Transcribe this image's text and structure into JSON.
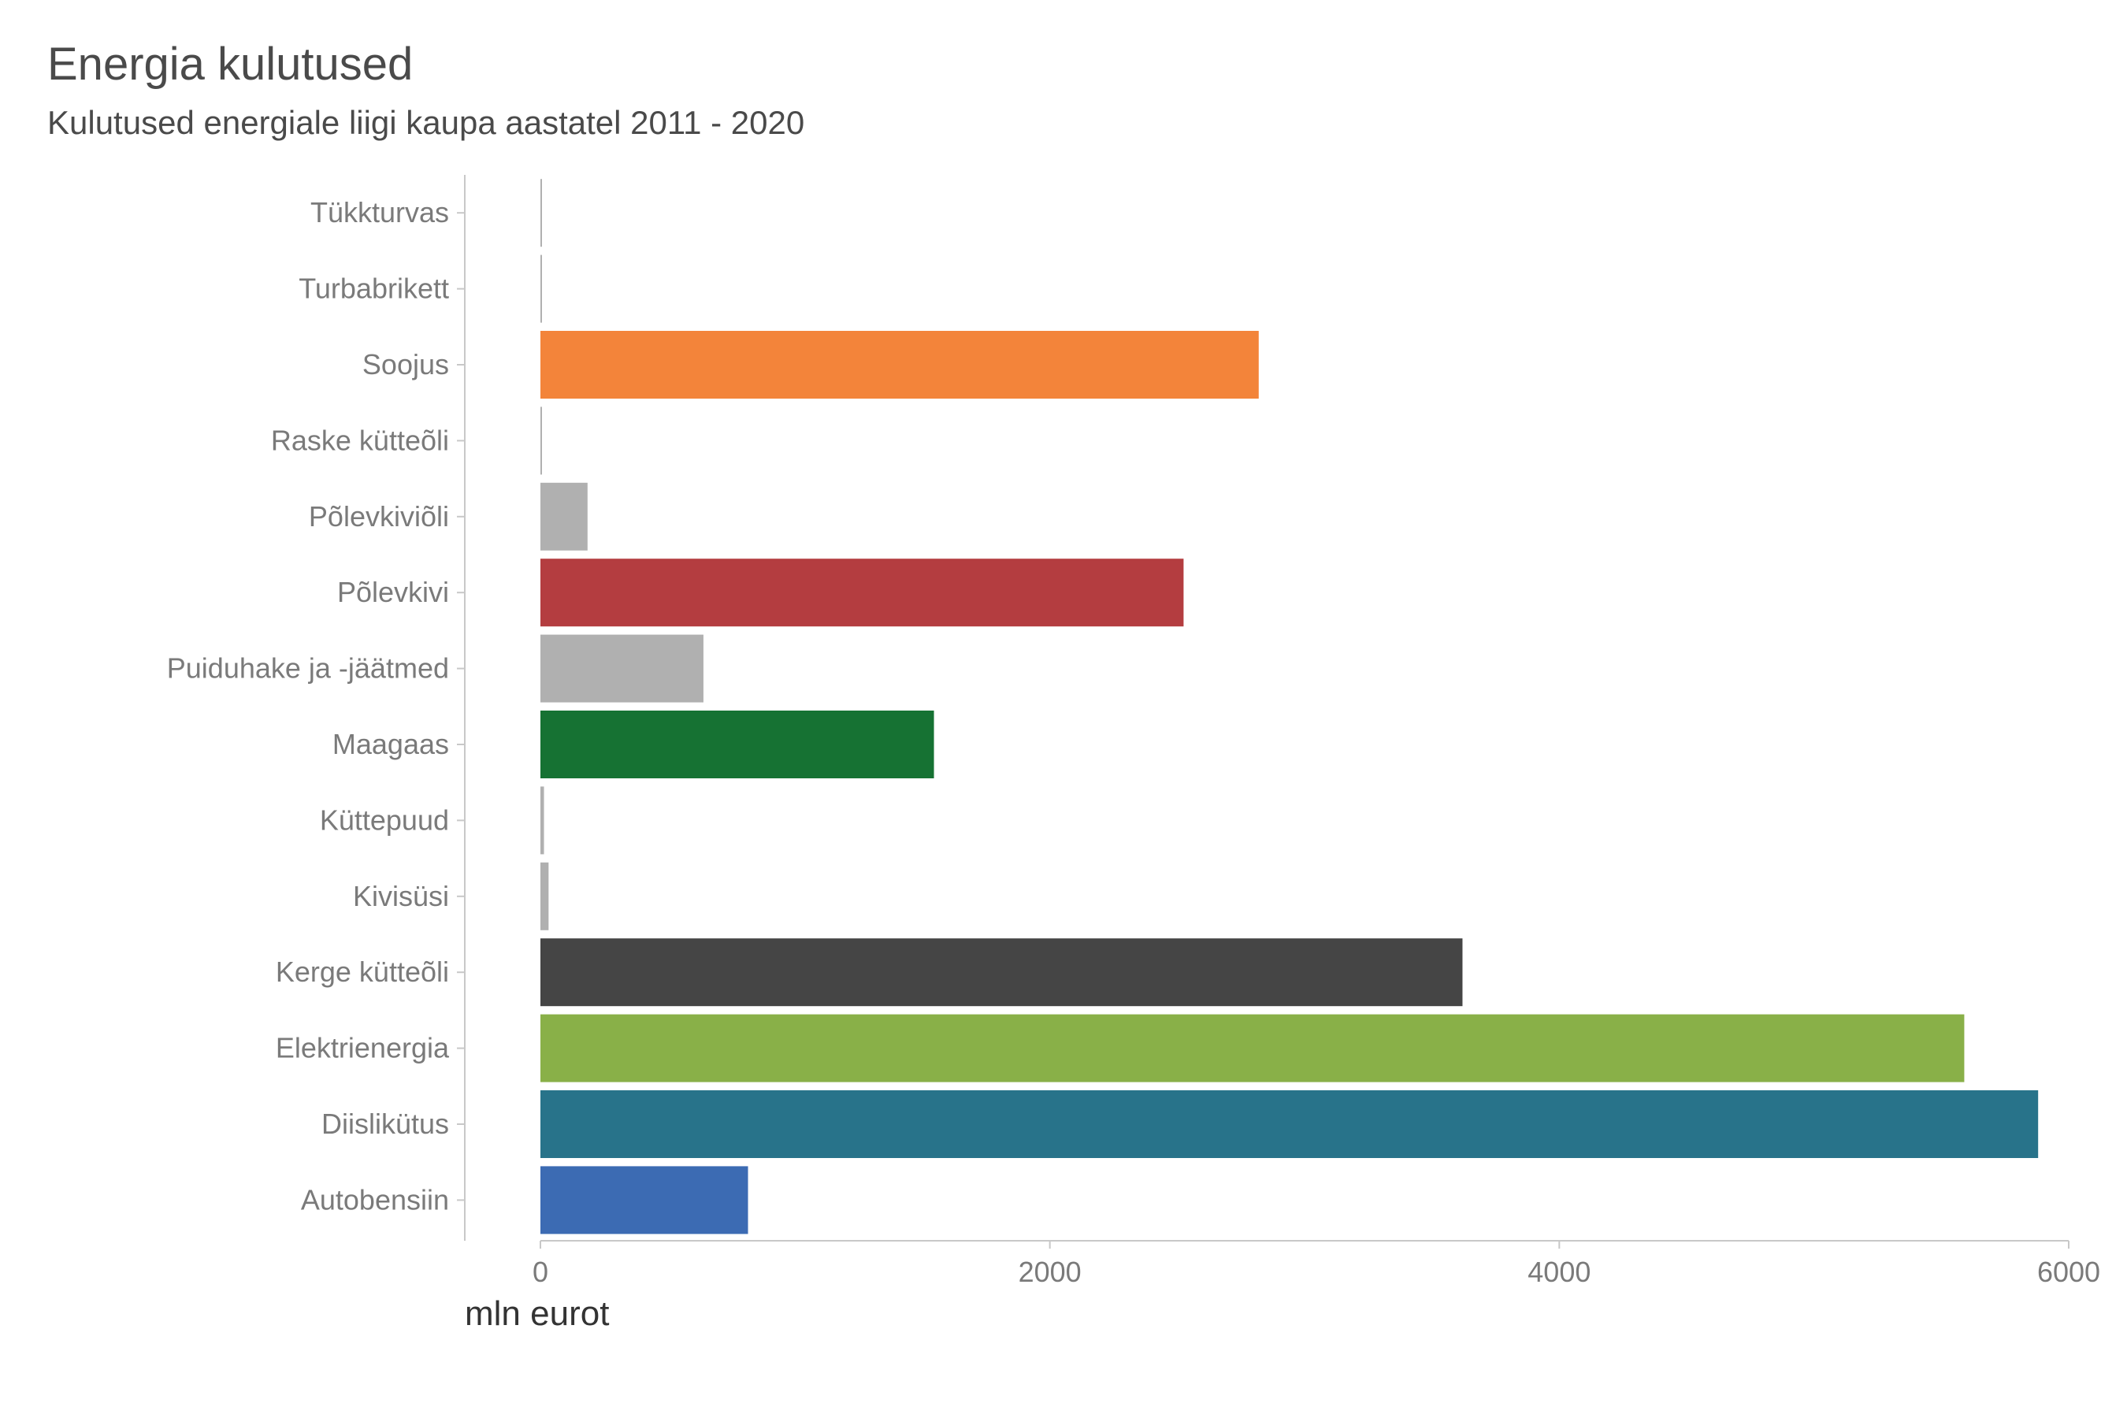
{
  "chart_data": {
    "type": "bar",
    "orientation": "horizontal",
    "title": "Energia kulutused",
    "subtitle": "Kulutused energiale liigi kaupa aastatel 2011 - 2020",
    "xlabel": "mln eurot",
    "ylabel": "",
    "xlim": [
      0,
      6000
    ],
    "xticks": [
      "0",
      "2000",
      "4000",
      "6000"
    ],
    "grid": false,
    "legend": "none",
    "categories": [
      "Tükkturvas",
      "Turbabrikett",
      "Soojus",
      "Raske kütteõli",
      "Põlevkiviõli",
      "Põlevkivi",
      "Puiduhake ja -jäätmed",
      "Maagaas",
      "Küttepuud",
      "Kivisüsi",
      "Kerge kütteõli",
      "Elektrienergia",
      "Diislikütus",
      "Autobensiin"
    ],
    "values": [
      4,
      2,
      2820,
      5,
      185,
      2525,
      640,
      1545,
      14,
      32,
      3620,
      5590,
      5880,
      815
    ],
    "colors": [
      "#b0b0b0",
      "#b0b0b0",
      "#f3843a",
      "#b0b0b0",
      "#b0b0b0",
      "#b43d40",
      "#b0b0b0",
      "#167233",
      "#b0b0b0",
      "#b0b0b0",
      "#454545",
      "#89b048",
      "#28738a",
      "#3c6bb3"
    ]
  }
}
